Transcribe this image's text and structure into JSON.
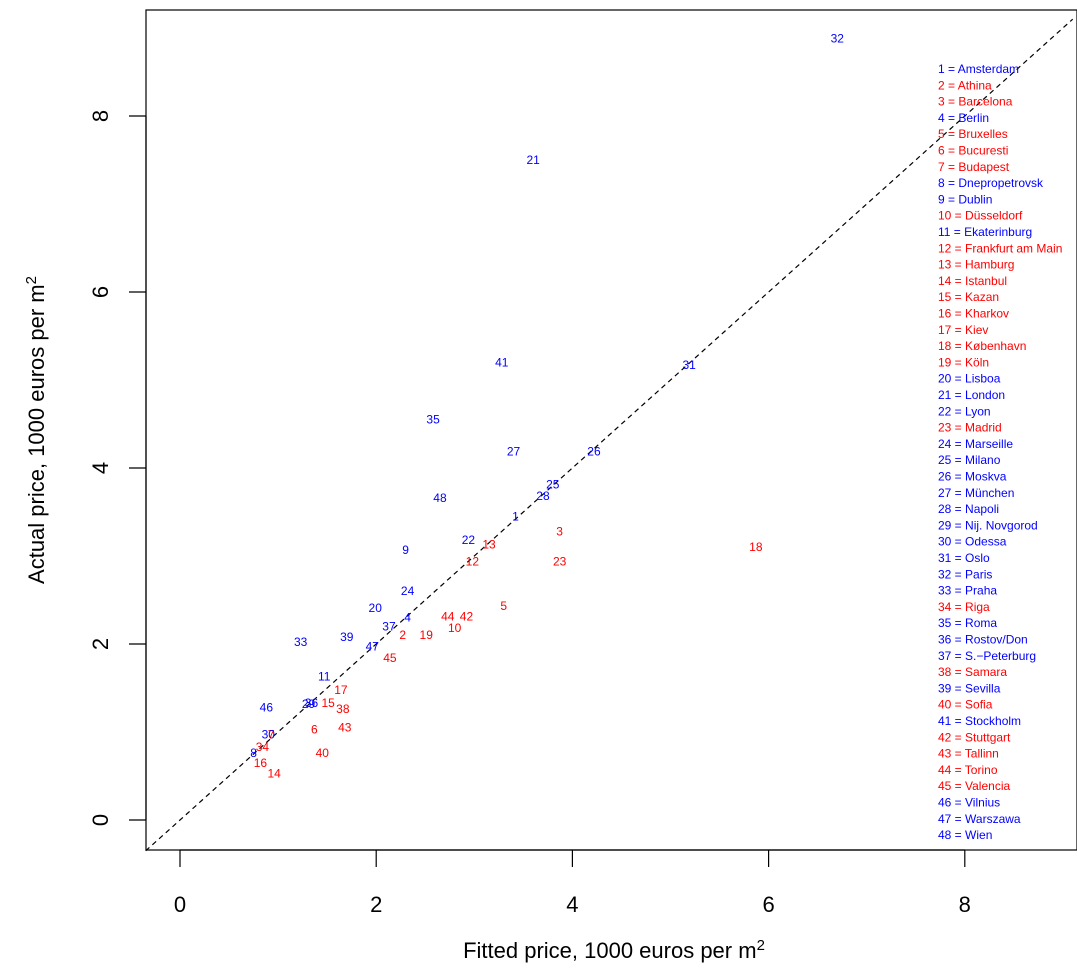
{
  "chart_data": {
    "type": "scatter",
    "title": "",
    "xlabel_main": "Fitted price, 1000 euros per m",
    "xlabel_sup": "2",
    "ylabel_main": "Actual price, 1000 euros per m",
    "ylabel_sup": "2",
    "xlim": [
      -0.35,
      9.1
    ],
    "ylim": [
      -0.35,
      9.2
    ],
    "xticks": [
      0,
      2,
      4,
      6,
      8
    ],
    "yticks": [
      0,
      2,
      4,
      6,
      8
    ],
    "reference_line": "y = x (dashed)",
    "colors": {
      "blue": "#0000ff",
      "red": "#ff0000"
    },
    "points": [
      {
        "id": 1,
        "x": 3.42,
        "y": 3.45,
        "color": "blue"
      },
      {
        "id": 2,
        "x": 2.27,
        "y": 2.1,
        "color": "red"
      },
      {
        "id": 3,
        "x": 3.87,
        "y": 3.28,
        "color": "red"
      },
      {
        "id": 4,
        "x": 2.32,
        "y": 2.3,
        "color": "blue"
      },
      {
        "id": 5,
        "x": 3.3,
        "y": 2.43,
        "color": "red"
      },
      {
        "id": 6,
        "x": 1.37,
        "y": 1.03,
        "color": "red"
      },
      {
        "id": 7,
        "x": 0.93,
        "y": 0.97,
        "color": "red"
      },
      {
        "id": 8,
        "x": 0.75,
        "y": 0.76,
        "color": "blue"
      },
      {
        "id": 9,
        "x": 2.3,
        "y": 3.07,
        "color": "blue"
      },
      {
        "id": 10,
        "x": 2.8,
        "y": 2.18,
        "color": "red"
      },
      {
        "id": 11,
        "x": 1.47,
        "y": 1.63,
        "color": "blue"
      },
      {
        "id": 12,
        "x": 2.98,
        "y": 2.94,
        "color": "red"
      },
      {
        "id": 13,
        "x": 3.15,
        "y": 3.13,
        "color": "red"
      },
      {
        "id": 14,
        "x": 0.96,
        "y": 0.53,
        "color": "red"
      },
      {
        "id": 15,
        "x": 1.51,
        "y": 1.33,
        "color": "red"
      },
      {
        "id": 16,
        "x": 0.82,
        "y": 0.65,
        "color": "red"
      },
      {
        "id": 17,
        "x": 1.64,
        "y": 1.48,
        "color": "red"
      },
      {
        "id": 18,
        "x": 5.87,
        "y": 3.1,
        "color": "red"
      },
      {
        "id": 19,
        "x": 2.51,
        "y": 2.1,
        "color": "red"
      },
      {
        "id": 20,
        "x": 1.99,
        "y": 2.41,
        "color": "blue"
      },
      {
        "id": 21,
        "x": 3.6,
        "y": 7.5,
        "color": "blue"
      },
      {
        "id": 22,
        "x": 2.94,
        "y": 3.18,
        "color": "blue"
      },
      {
        "id": 23,
        "x": 3.87,
        "y": 2.94,
        "color": "red"
      },
      {
        "id": 24,
        "x": 2.32,
        "y": 2.6,
        "color": "blue"
      },
      {
        "id": 25,
        "x": 3.8,
        "y": 3.81,
        "color": "blue"
      },
      {
        "id": 26,
        "x": 4.22,
        "y": 4.19,
        "color": "blue"
      },
      {
        "id": 27,
        "x": 3.4,
        "y": 4.19,
        "color": "blue"
      },
      {
        "id": 28,
        "x": 3.7,
        "y": 3.68,
        "color": "blue"
      },
      {
        "id": 29,
        "x": 1.31,
        "y": 1.32,
        "color": "blue"
      },
      {
        "id": 30,
        "x": 0.9,
        "y": 0.97,
        "color": "blue"
      },
      {
        "id": 31,
        "x": 5.19,
        "y": 5.17,
        "color": "blue"
      },
      {
        "id": 32,
        "x": 6.7,
        "y": 8.88,
        "color": "blue"
      },
      {
        "id": 33,
        "x": 1.23,
        "y": 2.02,
        "color": "blue"
      },
      {
        "id": 34,
        "x": 0.84,
        "y": 0.83,
        "color": "red"
      },
      {
        "id": 35,
        "x": 2.58,
        "y": 4.55,
        "color": "blue"
      },
      {
        "id": 36,
        "x": 1.34,
        "y": 1.33,
        "color": "blue"
      },
      {
        "id": 37,
        "x": 2.13,
        "y": 2.2,
        "color": "blue"
      },
      {
        "id": 38,
        "x": 1.66,
        "y": 1.26,
        "color": "red"
      },
      {
        "id": 39,
        "x": 1.7,
        "y": 2.08,
        "color": "blue"
      },
      {
        "id": 40,
        "x": 1.45,
        "y": 0.76,
        "color": "red"
      },
      {
        "id": 41,
        "x": 3.28,
        "y": 5.2,
        "color": "blue"
      },
      {
        "id": 42,
        "x": 2.92,
        "y": 2.31,
        "color": "red"
      },
      {
        "id": 43,
        "x": 1.68,
        "y": 1.05,
        "color": "red"
      },
      {
        "id": 44,
        "x": 2.73,
        "y": 2.31,
        "color": "red"
      },
      {
        "id": 45,
        "x": 2.14,
        "y": 1.84,
        "color": "red"
      },
      {
        "id": 46,
        "x": 0.88,
        "y": 1.28,
        "color": "blue"
      },
      {
        "id": 47,
        "x": 1.96,
        "y": 1.97,
        "color": "blue"
      },
      {
        "id": 48,
        "x": 2.65,
        "y": 3.66,
        "color": "blue"
      }
    ],
    "legend": [
      {
        "text": "1 = Amsterdam",
        "color": "blue"
      },
      {
        "text": "2 = Athina",
        "color": "red"
      },
      {
        "text": "3 = Barcelona",
        "color": "red"
      },
      {
        "text": "4 = Berlin",
        "color": "blue"
      },
      {
        "text": "5 = Bruxelles",
        "color": "red"
      },
      {
        "text": "6 = Bucuresti",
        "color": "red"
      },
      {
        "text": "7 = Budapest",
        "color": "red"
      },
      {
        "text": "8 = Dnepropetrovsk",
        "color": "blue"
      },
      {
        "text": "9 = Dublin",
        "color": "blue"
      },
      {
        "text": "10 = Düsseldorf",
        "color": "red"
      },
      {
        "text": "11 = Ekaterinburg",
        "color": "blue"
      },
      {
        "text": "12 = Frankfurt am Main",
        "color": "red"
      },
      {
        "text": "13 = Hamburg",
        "color": "red"
      },
      {
        "text": "14 = Istanbul",
        "color": "red"
      },
      {
        "text": "15 = Kazan",
        "color": "red"
      },
      {
        "text": "16 = Kharkov",
        "color": "red"
      },
      {
        "text": "17 = Kiev",
        "color": "red"
      },
      {
        "text": "18 = København",
        "color": "red"
      },
      {
        "text": "19 = Köln",
        "color": "red"
      },
      {
        "text": "20 = Lisboa",
        "color": "blue"
      },
      {
        "text": "21 = London",
        "color": "blue"
      },
      {
        "text": "22 = Lyon",
        "color": "blue"
      },
      {
        "text": "23 = Madrid",
        "color": "red"
      },
      {
        "text": "24 = Marseille",
        "color": "blue"
      },
      {
        "text": "25 = Milano",
        "color": "blue"
      },
      {
        "text": "26 = Moskva",
        "color": "blue"
      },
      {
        "text": "27 = München",
        "color": "blue"
      },
      {
        "text": "28 = Napoli",
        "color": "blue"
      },
      {
        "text": "29 = Nij. Novgorod",
        "color": "blue"
      },
      {
        "text": "30 = Odessa",
        "color": "blue"
      },
      {
        "text": "31 = Oslo",
        "color": "blue"
      },
      {
        "text": "32 = Paris",
        "color": "blue"
      },
      {
        "text": "33 = Praha",
        "color": "blue"
      },
      {
        "text": "34 = Riga",
        "color": "red"
      },
      {
        "text": "35 = Roma",
        "color": "blue"
      },
      {
        "text": "36 = Rostov/Don",
        "color": "blue"
      },
      {
        "text": "37 = S.−Peterburg",
        "color": "blue"
      },
      {
        "text": "38 = Samara",
        "color": "red"
      },
      {
        "text": "39 = Sevilla",
        "color": "blue"
      },
      {
        "text": "40 = Sofia",
        "color": "red"
      },
      {
        "text": "41 = Stockholm",
        "color": "blue"
      },
      {
        "text": "42 = Stuttgart",
        "color": "red"
      },
      {
        "text": "43 = Tallinn",
        "color": "red"
      },
      {
        "text": "44 = Torino",
        "color": "red"
      },
      {
        "text": "45 = Valencia",
        "color": "red"
      },
      {
        "text": "46 = Vilnius",
        "color": "blue"
      },
      {
        "text": "47 = Warszawa",
        "color": "blue"
      },
      {
        "text": "48 = Wien",
        "color": "blue"
      }
    ]
  }
}
